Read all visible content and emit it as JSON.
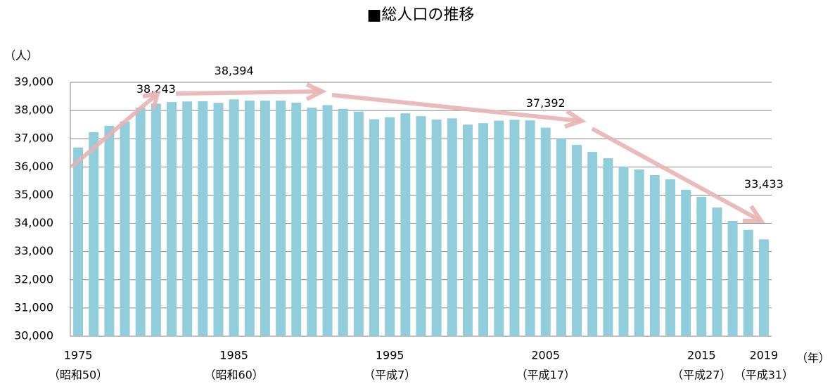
{
  "chart_data": {
    "type": "bar",
    "title": "■総人口の推移",
    "y_label": "（人）",
    "x_label": "（年）",
    "color": "#92cddc",
    "grid": true,
    "ylim": [
      30000,
      39000
    ],
    "yticks": [
      {
        "value": 30000,
        "label": "30,000"
      },
      {
        "value": 31000,
        "label": "31,000"
      },
      {
        "value": 32000,
        "label": "32,000"
      },
      {
        "value": 33000,
        "label": "33,000"
      },
      {
        "value": 34000,
        "label": "34,000"
      },
      {
        "value": 35000,
        "label": "35,000"
      },
      {
        "value": 36000,
        "label": "36,000"
      },
      {
        "value": 37000,
        "label": "37,000"
      },
      {
        "value": 38000,
        "label": "38,000"
      },
      {
        "value": 39000,
        "label": "39,000"
      }
    ],
    "categories": [
      "1975",
      null,
      null,
      null,
      null,
      null,
      null,
      null,
      null,
      null,
      "1985",
      null,
      null,
      null,
      null,
      null,
      null,
      null,
      null,
      null,
      "1995",
      null,
      null,
      null,
      null,
      null,
      null,
      null,
      null,
      null,
      "2005",
      null,
      null,
      null,
      null,
      null,
      null,
      null,
      null,
      null,
      "2015",
      null,
      null,
      null,
      "2019"
    ],
    "category_sublabels": [
      "（昭和50）",
      null,
      null,
      null,
      null,
      null,
      null,
      null,
      null,
      null,
      "（昭和60）",
      null,
      null,
      null,
      null,
      null,
      null,
      null,
      null,
      null,
      "（平成7）",
      null,
      null,
      null,
      null,
      null,
      null,
      null,
      null,
      null,
      "（平成17）",
      null,
      null,
      null,
      null,
      null,
      null,
      null,
      null,
      null,
      "（平成27）",
      null,
      null,
      null,
      "（平成31）"
    ],
    "values": [
      36690,
      37230,
      37460,
      37610,
      38100,
      38243,
      38300,
      38320,
      38330,
      38270,
      38394,
      38350,
      38350,
      38350,
      38280,
      38100,
      38190,
      38060,
      37960,
      37690,
      37760,
      37900,
      37800,
      37680,
      37720,
      37500,
      37550,
      37640,
      37670,
      37650,
      37392,
      37000,
      36780,
      36530,
      36310,
      36010,
      35910,
      35710,
      35560,
      35190,
      34940,
      34560,
      34090,
      33770,
      33433
    ],
    "value_labels": [
      null,
      null,
      null,
      null,
      null,
      "38,243",
      null,
      null,
      null,
      null,
      "38,394",
      null,
      null,
      null,
      null,
      null,
      null,
      null,
      null,
      null,
      null,
      null,
      null,
      null,
      null,
      null,
      null,
      null,
      null,
      null,
      "37,392",
      null,
      null,
      null,
      null,
      null,
      null,
      null,
      null,
      null,
      null,
      null,
      null,
      null,
      "33,433"
    ]
  }
}
